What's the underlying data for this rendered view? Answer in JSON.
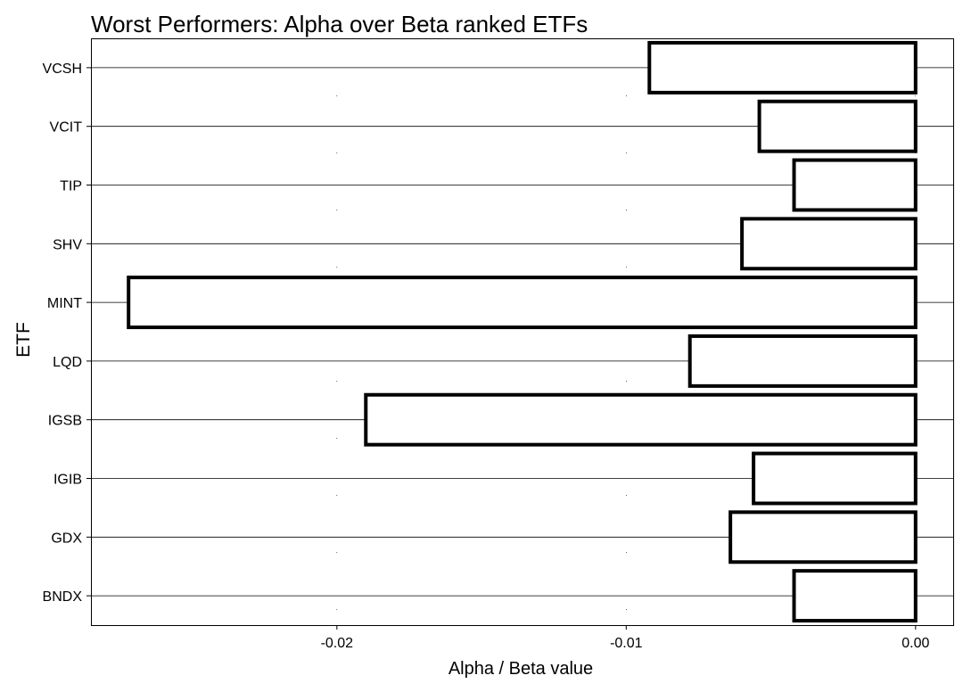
{
  "chart_data": {
    "type": "bar",
    "orientation": "horizontal",
    "title": "Worst Performers: Alpha over Beta ranked ETFs",
    "xlabel": "Alpha / Beta value",
    "ylabel": "ETF",
    "categories": [
      "VCSH",
      "VCIT",
      "TIP",
      "SHV",
      "MINT",
      "LQD",
      "IGSB",
      "IGIB",
      "GDX",
      "BNDX"
    ],
    "values": [
      -0.0092,
      -0.0054,
      -0.0042,
      -0.006,
      -0.0272,
      -0.0078,
      -0.019,
      -0.0056,
      -0.0064,
      -0.0042
    ],
    "xlim": [
      -0.0285,
      0.0013
    ],
    "x_ticks": [
      -0.02,
      -0.01,
      0.0
    ],
    "x_tick_labels": [
      "-0.02",
      "-0.01",
      "0.00"
    ],
    "grid": true,
    "legend": "none",
    "colors": {
      "bar_fill": "#ffffff",
      "bar_stroke": "#000000",
      "gridline": "#000000",
      "panel_border": "#000000",
      "text": "#000000"
    }
  }
}
